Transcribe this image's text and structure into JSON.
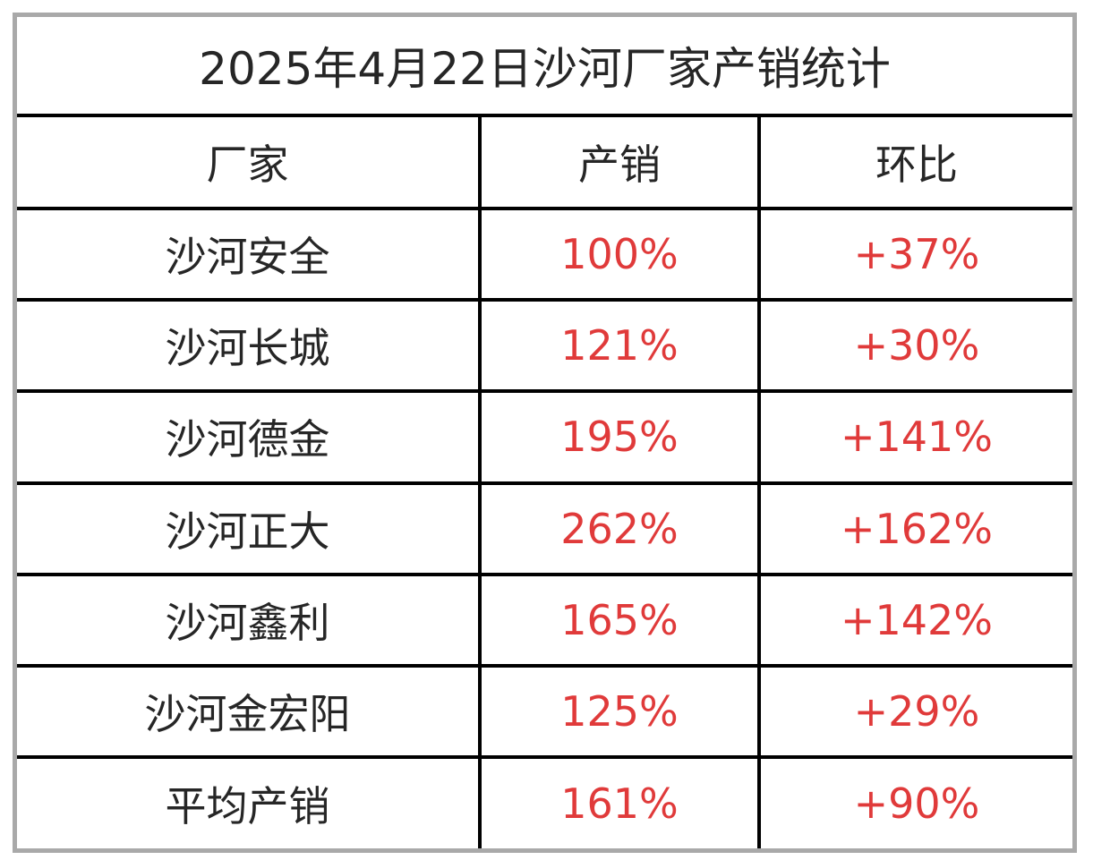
{
  "title": "2025年4月22日沙河厂家产销统计",
  "headers": {
    "factory": "厂家",
    "production_sales": "产销",
    "change": "环比"
  },
  "rows": [
    {
      "factory": "沙河安全",
      "production_sales": "100%",
      "change": "+37%"
    },
    {
      "factory": "沙河长城",
      "production_sales": "121%",
      "change": "+30%"
    },
    {
      "factory": "沙河德金",
      "production_sales": "195%",
      "change": "+141%"
    },
    {
      "factory": "沙河正大",
      "production_sales": "262%",
      "change": "+162%"
    },
    {
      "factory": "沙河鑫利",
      "production_sales": "165%",
      "change": "+142%"
    },
    {
      "factory": "沙河金宏阳",
      "production_sales": "125%",
      "change": "+29%"
    },
    {
      "factory": "平均产销",
      "production_sales": "161%",
      "change": "+90%"
    }
  ],
  "colors": {
    "text": "#262626",
    "value": "#e03a3a",
    "grid": "#000000",
    "frame": "#a9a9a9"
  }
}
